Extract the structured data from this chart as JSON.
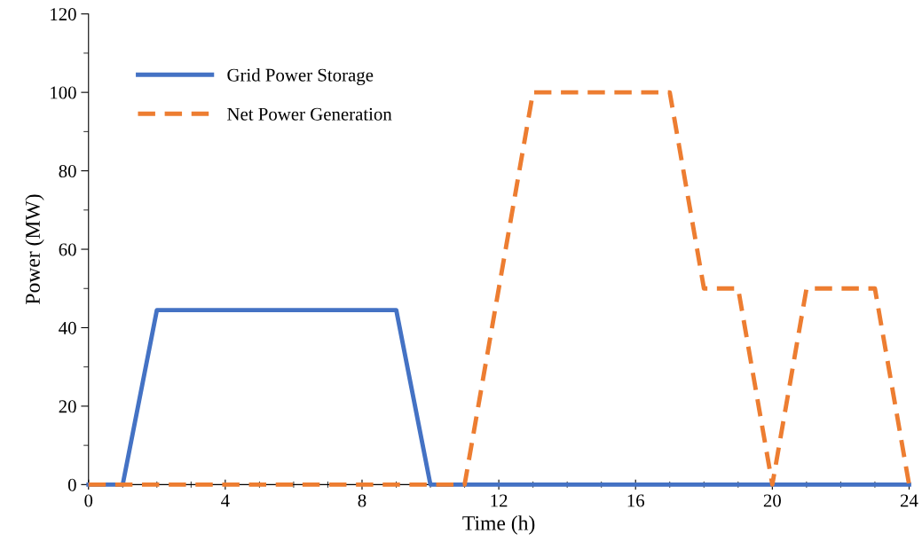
{
  "chart_data": {
    "type": "line",
    "xlabel": "Time (h)",
    "ylabel": "Power (MW)",
    "xlim": [
      0,
      24
    ],
    "xticks": [
      0,
      4,
      8,
      12,
      16,
      20,
      24
    ],
    "ylim": [
      0,
      120
    ],
    "yticks": [
      0,
      20,
      40,
      60,
      80,
      100,
      120
    ],
    "grid": false,
    "legend": "top left",
    "marker": "none",
    "series": [
      {
        "name": "Grid Power Storage",
        "color": "#4472c4",
        "line_style": "solid",
        "x": [
          0,
          1,
          2,
          9,
          10,
          24
        ],
        "values": [
          0,
          0,
          44.5,
          44.5,
          0,
          0
        ]
      },
      {
        "name": "Net Power Generation",
        "color": "#ed7d31",
        "line_style": "dashed",
        "x": [
          0,
          11,
          13,
          17,
          18,
          19,
          20,
          21,
          23,
          24
        ],
        "values": [
          0,
          0,
          100,
          100,
          50,
          50,
          0,
          50,
          50,
          0
        ]
      }
    ]
  }
}
